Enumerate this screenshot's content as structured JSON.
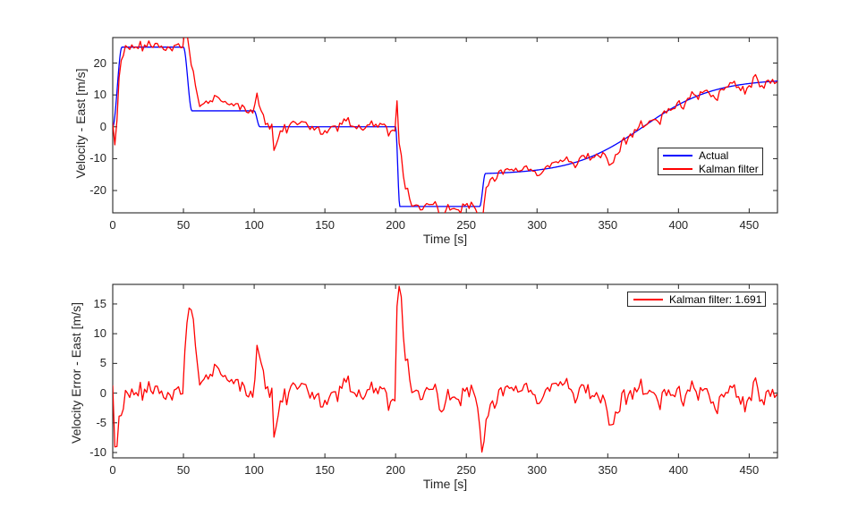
{
  "figure": {
    "background": "#ffffff",
    "axis_color": "#262626",
    "text_color": "#262626"
  },
  "chart_data": [
    {
      "id": "velocity-east",
      "type": "line",
      "title": "",
      "xlabel": "Time [s]",
      "ylabel": "Velocity - East [m/s]",
      "xlim": [
        0,
        470
      ],
      "ylim": [
        -27,
        28
      ],
      "xticks": [
        0,
        50,
        100,
        150,
        200,
        250,
        300,
        350,
        400,
        450
      ],
      "yticks": [
        -20,
        -10,
        0,
        10,
        20
      ],
      "grid": false,
      "legend": {
        "position": "inside-right-middle",
        "entries": [
          {
            "label": "Actual",
            "color": "#0000ff"
          },
          {
            "label": "Kalman filter",
            "color": "#ff0000"
          }
        ]
      },
      "series": [
        {
          "name": "Actual",
          "color": "#0000ff",
          "line_width": 1.3,
          "model": {
            "kind": "smooth-breakpoints-plus-tanh",
            "dt": 0.5,
            "nodes": [
              [
                0,
                0
              ],
              [
                6.5,
                25
              ],
              [
                50,
                25
              ],
              [
                56,
                5
              ],
              [
                100,
                5
              ],
              [
                104,
                0
              ],
              [
                200,
                0
              ],
              [
                203,
                -25
              ],
              [
                259.5,
                -25
              ],
              [
                263.5,
                -14.64
              ]
            ],
            "tanh": {
              "from": 263.5,
              "amp": 15,
              "center": 375,
              "width": 50
            }
          }
        },
        {
          "name": "Kalman filter",
          "color": "#ff0000",
          "line_width": 1.3,
          "model": {
            "kind": "actual-plus-error"
          }
        }
      ]
    },
    {
      "id": "velocity-error-east",
      "type": "line",
      "title": "",
      "xlabel": "Time [s]",
      "ylabel": "Velocity Error - East [m/s]",
      "xlim": [
        0,
        470
      ],
      "ylim": [
        -10.9,
        18.3
      ],
      "xticks": [
        0,
        50,
        100,
        150,
        200,
        250,
        300,
        350,
        400,
        450
      ],
      "yticks": [
        -10,
        -5,
        0,
        5,
        10,
        15
      ],
      "grid": false,
      "legend": {
        "position": "inside-top-right",
        "entries": [
          {
            "label": "Kalman filter: 1.691",
            "color": "#ff0000"
          }
        ]
      },
      "series": [
        {
          "name": "Kalman filter error",
          "color": "#ff0000",
          "line_width": 1.3,
          "model": {
            "kind": "error-signal"
          }
        }
      ],
      "error_model": {
        "dt": 1.5,
        "pulses": [
          {
            "t0": 0.3,
            "tau": 1.6,
            "amp": -11
          },
          {
            "t0": 50,
            "tau": 4.5,
            "amp": 14.5
          },
          {
            "t0": 58,
            "tau": 2.0,
            "amp": -5.2
          },
          {
            "t0": 71,
            "tau": 1.3,
            "amp": 4.8
          },
          {
            "t0": 100,
            "tau": 2.6,
            "amp": 4.6
          },
          {
            "t0": 113,
            "tau": 1.4,
            "amp": -5.2
          },
          {
            "t0": 200,
            "tau": 2.2,
            "amp": 18.7
          },
          {
            "t0": 259,
            "tau": 2.4,
            "amp": -7.2
          },
          {
            "t0": 349,
            "tau": 2.4,
            "amp": -6.3
          }
        ],
        "noise": {
          "type": "ar1",
          "phi": 0.45,
          "sigma": 1.15,
          "seed": 9
        }
      }
    }
  ]
}
